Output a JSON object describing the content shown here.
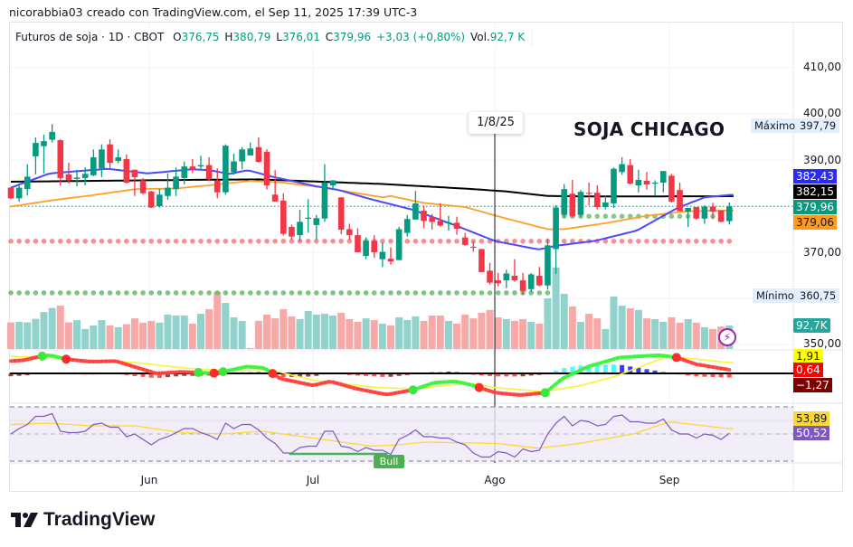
{
  "credit": "nicorabbia03 creado con TradingView.com, el Sep 11, 2025 17:39 UTC-3",
  "legend": {
    "symbol": "Futuros de soja · 1D · CBOT",
    "o_label": "O",
    "o": "376,75",
    "h_label": "H",
    "h": "380,79",
    "l_label": "L",
    "l": "376,01",
    "c_label": "C",
    "c": "379,96",
    "change": "+3,03 (+0,80%)",
    "vol_label": "Vol.",
    "vol": "92,7 K"
  },
  "annotation_title": "SOJA CHICAGO",
  "crosshair_date": "1/8/25",
  "bull_label": "Bull",
  "high_label": {
    "text": "Máximo",
    "value": "397,79"
  },
  "low_label": {
    "text": "Mínimo",
    "value": "360,75"
  },
  "price_ticks": [
    "410,00",
    "400,00",
    "390,00",
    "370,00",
    "350,00"
  ],
  "price_tags": [
    {
      "label": "382,43",
      "bg": "#2a2aff",
      "fg": "#ffffff"
    },
    {
      "label": "382,15",
      "bg": "#000000",
      "fg": "#ffffff"
    },
    {
      "label": "379,96",
      "bg": "#089981",
      "fg": "#ffffff"
    },
    {
      "label": "379,06",
      "bg": "#ff9a1f",
      "fg": "#131722"
    }
  ],
  "volume_tag": {
    "label": "92,7K",
    "bg": "#26a69a",
    "fg": "#ffffff"
  },
  "macd_tags": [
    {
      "label": "1,91",
      "bg": "#ffff00",
      "fg": "#131722"
    },
    {
      "label": "0,64",
      "bg": "#ff0000",
      "fg": "#ffffff"
    },
    {
      "label": "−1,27",
      "bg": "#7b0000",
      "fg": "#ffffff"
    }
  ],
  "rsi_tags": [
    {
      "label": "53,89",
      "bg": "#fdd835",
      "fg": "#131722"
    },
    {
      "label": "50,52",
      "bg": "#7e57c2",
      "fg": "#ffffff"
    }
  ],
  "months": [
    "Jun",
    "Jul",
    "Ago",
    "Sep"
  ],
  "logo_text": "TradingView",
  "colors": {
    "up": "#089981",
    "down": "#f23645",
    "vol_up": "#92d2cc",
    "vol_down": "#f7a9a7",
    "ma_fast": "#4a4aff",
    "ma_mid": "#ff9f2a",
    "ma_slow": "#000000"
  },
  "chart_data": {
    "type": "candlestick",
    "price_range": [
      348,
      414
    ],
    "candles_ohlc": [
      [
        384.0,
        384.2,
        381.5,
        381.7
      ],
      [
        381.7,
        384.8,
        381.0,
        384.0
      ],
      [
        383.7,
        389.1,
        382.3,
        386.4
      ],
      [
        390.8,
        394.9,
        386.9,
        393.7
      ],
      [
        393.0,
        395.5,
        387.1,
        394.1
      ],
      [
        394.4,
        397.79,
        393.8,
        396.1
      ],
      [
        394.3,
        394.5,
        384.5,
        386.1
      ],
      [
        386.9,
        389.4,
        384.9,
        385.7
      ],
      [
        385.9,
        387.9,
        384.3,
        386.2
      ],
      [
        386.1,
        388.4,
        384.5,
        387.0
      ],
      [
        386.7,
        392.3,
        386.5,
        390.6
      ],
      [
        388.2,
        393.4,
        386.3,
        392.3
      ],
      [
        393.4,
        394.5,
        388.0,
        389.4
      ],
      [
        389.8,
        392.3,
        389.3,
        390.6
      ],
      [
        390.2,
        391.2,
        384.9,
        385.1
      ],
      [
        387.9,
        387.9,
        382.2,
        386.3
      ],
      [
        385.6,
        386.1,
        382.5,
        382.8
      ],
      [
        383.2,
        383.3,
        379.6,
        379.7
      ],
      [
        380.0,
        383.7,
        379.7,
        382.5
      ],
      [
        382.2,
        387.1,
        381.4,
        384.0
      ],
      [
        383.7,
        388.4,
        382.2,
        386.4
      ],
      [
        386.1,
        389.7,
        384.7,
        388.6
      ],
      [
        388.6,
        390.2,
        387.2,
        387.9
      ],
      [
        388.6,
        390.9,
        387.8,
        388.9
      ],
      [
        388.9,
        390.6,
        385.5,
        385.8
      ],
      [
        385.5,
        388.2,
        381.7,
        383.0
      ],
      [
        383.0,
        393.4,
        382.5,
        393.1
      ],
      [
        387.4,
        391.4,
        386.8,
        389.7
      ],
      [
        389.7,
        392.8,
        388.0,
        392.3
      ],
      [
        391.0,
        393.8,
        391.0,
        392.5
      ],
      [
        392.8,
        394.9,
        389.4,
        389.6
      ],
      [
        391.8,
        392.3,
        383.6,
        384.5
      ],
      [
        382.5,
        387.8,
        381.0,
        381.0
      ],
      [
        381.2,
        382.8,
        373.6,
        374.0
      ],
      [
        375.5,
        376.0,
        372.7,
        373.4
      ],
      [
        373.7,
        379.2,
        372.4,
        376.6
      ],
      [
        377.4,
        381.5,
        374.3,
        377.5
      ],
      [
        375.9,
        378.1,
        372.7,
        377.4
      ],
      [
        377.3,
        389.1,
        376.6,
        385.1
      ],
      [
        384.5,
        385.6,
        383.7,
        385.6
      ],
      [
        381.9,
        381.9,
        373.9,
        374.9
      ],
      [
        375.0,
        376.2,
        372.7,
        373.7
      ],
      [
        373.7,
        375.2,
        370.0,
        370.0
      ],
      [
        369.2,
        373.2,
        368.5,
        372.5
      ],
      [
        372.5,
        373.7,
        368.8,
        370.0
      ],
      [
        368.5,
        372.1,
        366.8,
        370.1
      ],
      [
        368.6,
        371.1,
        367.3,
        368.0
      ],
      [
        368.3,
        375.5,
        368.3,
        375.0
      ],
      [
        374.2,
        378.1,
        373.4,
        377.2
      ],
      [
        377.1,
        383.3,
        377.1,
        380.6
      ],
      [
        379.0,
        380.1,
        375.2,
        376.8
      ],
      [
        377.6,
        378.3,
        374.9,
        376.6
      ],
      [
        376.8,
        380.6,
        375.5,
        375.8
      ],
      [
        376.4,
        377.9,
        374.7,
        376.5
      ],
      [
        376.4,
        377.7,
        373.8,
        375.1
      ],
      [
        373.2,
        374.2,
        371.4,
        371.6
      ],
      [
        371.2,
        372.4,
        370.1,
        371.1
      ],
      [
        370.7,
        370.7,
        365.7,
        365.7
      ],
      [
        366.0,
        367.7,
        363.0,
        363.4
      ],
      [
        363.9,
        365.5,
        362.6,
        363.3
      ],
      [
        363.9,
        366.2,
        362.2,
        365.4
      ],
      [
        364.9,
        368.5,
        363.6,
        363.9
      ],
      [
        363.9,
        365.5,
        360.75,
        361.6
      ],
      [
        362.0,
        365.5,
        361.4,
        365.2
      ],
      [
        364.9,
        366.8,
        362.6,
        362.8
      ],
      [
        362.8,
        373.0,
        361.9,
        371.5
      ],
      [
        370.7,
        380.2,
        365.3,
        379.7
      ],
      [
        378.1,
        384.8,
        377.6,
        383.7
      ],
      [
        382.7,
        385.7,
        377.6,
        377.8
      ],
      [
        378.1,
        383.5,
        377.6,
        383.1
      ],
      [
        382.9,
        385.1,
        380.2,
        382.7
      ],
      [
        382.9,
        384.5,
        379.3,
        379.8
      ],
      [
        379.8,
        382.2,
        379.3,
        380.8
      ],
      [
        380.6,
        388.4,
        379.6,
        388.1
      ],
      [
        387.4,
        390.6,
        386.8,
        389.1
      ],
      [
        388.9,
        390.2,
        384.7,
        384.9
      ],
      [
        384.5,
        387.9,
        383.0,
        385.7
      ],
      [
        385.5,
        387.4,
        383.6,
        384.7
      ],
      [
        385.0,
        385.6,
        382.2,
        385.1
      ],
      [
        385.1,
        387.6,
        383.0,
        387.6
      ],
      [
        386.6,
        387.0,
        380.8,
        381.0
      ],
      [
        383.5,
        385.1,
        378.9,
        378.9
      ],
      [
        378.8,
        379.6,
        375.5,
        379.6
      ],
      [
        379.8,
        379.8,
        377.0,
        377.3
      ],
      [
        377.3,
        380.2,
        376.2,
        379.9
      ],
      [
        379.9,
        380.7,
        377.2,
        378.8
      ],
      [
        379.1,
        379.1,
        376.5,
        376.6
      ],
      [
        376.75,
        380.79,
        376.01,
        379.96
      ]
    ],
    "volume_k": [
      105,
      107,
      105,
      119,
      146,
      162,
      171,
      105,
      114,
      79,
      93,
      114,
      93,
      86,
      98,
      121,
      104,
      111,
      104,
      136,
      132,
      132,
      100,
      139,
      157,
      226,
      182,
      125,
      111,
      4,
      111,
      136,
      121,
      157,
      129,
      118,
      150,
      136,
      139,
      132,
      143,
      118,
      107,
      121,
      114,
      100,
      93,
      125,
      114,
      129,
      111,
      132,
      132,
      111,
      100,
      136,
      121,
      143,
      154,
      125,
      118,
      111,
      118,
      107,
      100,
      200,
      322,
      218,
      168,
      107,
      139,
      121,
      79,
      207,
      171,
      161,
      154,
      121,
      118,
      107,
      125,
      104,
      118,
      104,
      86,
      79,
      89,
      92.7
    ],
    "ma_fast": [
      [
        0,
        384.0
      ],
      [
        4.7,
        387.1
      ],
      [
        11.7,
        388.1
      ],
      [
        16.6,
        387.1
      ],
      [
        22,
        388.0
      ],
      [
        24,
        387.8
      ],
      [
        26.5,
        387.0
      ],
      [
        28.7,
        387.8
      ],
      [
        31.6,
        386.4
      ],
      [
        37,
        384.3
      ],
      [
        39.7,
        383.5
      ],
      [
        43.6,
        381.5
      ],
      [
        48.7,
        379.2
      ],
      [
        54,
        375.7
      ],
      [
        58.7,
        372.4
      ],
      [
        63.9,
        370.6
      ],
      [
        66,
        371.4
      ],
      [
        70.8,
        372.5
      ],
      [
        75.8,
        374.7
      ],
      [
        80.7,
        379.6
      ],
      [
        84,
        381.9
      ],
      [
        87,
        382.43
      ]
    ],
    "ma_mid": [
      [
        0,
        379.9
      ],
      [
        4.7,
        381.2
      ],
      [
        9.6,
        382.3
      ],
      [
        15.1,
        383.7
      ],
      [
        20,
        383.8
      ],
      [
        22,
        384.2
      ],
      [
        24,
        384.5
      ],
      [
        29,
        385.5
      ],
      [
        33,
        385.1
      ],
      [
        38,
        384.0
      ],
      [
        45,
        381.9
      ],
      [
        46,
        382.2
      ],
      [
        50,
        380.7
      ],
      [
        55,
        379.8
      ],
      [
        60,
        377.3
      ],
      [
        65,
        375.0
      ],
      [
        67,
        375.0
      ],
      [
        72,
        376.3
      ],
      [
        77,
        377.9
      ],
      [
        82,
        378.9
      ],
      [
        87,
        379.06
      ]
    ],
    "ma_slow": [
      [
        0,
        385.3
      ],
      [
        22,
        385.7
      ],
      [
        30,
        385.8
      ],
      [
        45,
        384.8
      ],
      [
        55,
        383.8
      ],
      [
        60,
        383.2
      ],
      [
        65,
        382.2
      ],
      [
        70,
        382.1
      ],
      [
        87,
        382.15
      ]
    ],
    "resistance_dots": 372.4,
    "support_dots": {
      "value": 361.2,
      "from": 0,
      "to": 65
    },
    "support_dots_2": {
      "value": 377.8,
      "from": 67,
      "to": 87
    },
    "last_price": 379.96,
    "crosshair_bar": 58.6,
    "macd": {
      "range": [
        -4.5,
        4.0
      ],
      "line": [
        [
          0,
          2.17
        ],
        [
          1.6,
          2.33
        ],
        [
          3.6,
          3.0
        ],
        [
          4.7,
          3.2
        ],
        [
          6.7,
          2.5
        ],
        [
          9.6,
          2.06
        ],
        [
          12.7,
          2.17
        ],
        [
          14.7,
          1.27
        ],
        [
          17.6,
          0
        ],
        [
          20.6,
          0.26
        ],
        [
          24.6,
          0.05
        ],
        [
          25.7,
          0.3
        ],
        [
          28.6,
          1.2
        ],
        [
          30.7,
          0.95
        ],
        [
          32.6,
          -0.9
        ],
        [
          36.6,
          -2.1
        ],
        [
          38.7,
          -1.4
        ],
        [
          41.6,
          -2.6
        ],
        [
          44.7,
          -3.5
        ],
        [
          45.6,
          -3.7
        ],
        [
          48.7,
          -2.9
        ],
        [
          51.3,
          -1.6
        ],
        [
          53.8,
          -1.4
        ],
        [
          55.6,
          -1.96
        ],
        [
          58.7,
          -3.4
        ],
        [
          61.7,
          -3.8
        ],
        [
          64.7,
          -3.4
        ],
        [
          66.8,
          -0.9
        ],
        [
          69.9,
          1.2
        ],
        [
          73.7,
          2.8
        ],
        [
          78.6,
          3.2
        ],
        [
          80.6,
          2.8
        ],
        [
          83,
          1.6
        ],
        [
          87,
          0.64
        ]
      ],
      "signal": [
        [
          0,
          3.0
        ],
        [
          4.7,
          2.8
        ],
        [
          9.6,
          2.3
        ],
        [
          15.1,
          1.9
        ],
        [
          20.6,
          1.0
        ],
        [
          25.7,
          0.5
        ],
        [
          31.5,
          0.6
        ],
        [
          36.6,
          -1.2
        ],
        [
          42.5,
          -2.2
        ],
        [
          44.6,
          -2.5
        ],
        [
          48.7,
          -2.7
        ],
        [
          55.6,
          -1.7
        ],
        [
          58.7,
          -2.5
        ],
        [
          64.4,
          -3.2
        ],
        [
          68.8,
          -2.2
        ],
        [
          73.2,
          -0.5
        ],
        [
          77.5,
          1.9
        ],
        [
          79.7,
          3.0
        ],
        [
          87,
          1.91
        ]
      ],
      "crosses": [
        [
          3.8,
          "bull"
        ],
        [
          6.7,
          "bear"
        ],
        [
          22.7,
          "bull"
        ],
        [
          24.6,
          "bear"
        ],
        [
          25.7,
          "bull"
        ],
        [
          31.7,
          "bear"
        ],
        [
          48.7,
          "bull"
        ],
        [
          56.7,
          "bear"
        ],
        [
          64.7,
          "bull"
        ],
        [
          80.6,
          "bear"
        ]
      ]
    },
    "rsi": {
      "range": [
        30,
        70
      ],
      "values": [
        50,
        54,
        57,
        63,
        63,
        65,
        52,
        51,
        51,
        52,
        57,
        58,
        55,
        55,
        48,
        50,
        46,
        42,
        46,
        48,
        51,
        54,
        54,
        51,
        49,
        46,
        58,
        54,
        57,
        57,
        53,
        47,
        43,
        36,
        36,
        40,
        41,
        41,
        52,
        52,
        41,
        40,
        37,
        40,
        38,
        38,
        35,
        46,
        49,
        53,
        48,
        48,
        47,
        47,
        44,
        42,
        36,
        33,
        33,
        37,
        36,
        33,
        39,
        37,
        38,
        50,
        58,
        63,
        56,
        60,
        59,
        56,
        57,
        63,
        64,
        59,
        59,
        58,
        58,
        61,
        53,
        50,
        50,
        47,
        50,
        49,
        46,
        50.52
      ],
      "ma": [
        [
          0,
          57
        ],
        [
          4.7,
          58
        ],
        [
          9.6,
          56
        ],
        [
          15.1,
          56
        ],
        [
          20.6,
          51
        ],
        [
          25.7,
          50
        ],
        [
          30.5,
          52
        ],
        [
          36.6,
          47
        ],
        [
          43.6,
          41
        ],
        [
          46.9,
          42
        ],
        [
          50.2,
          44
        ],
        [
          58.9,
          43
        ],
        [
          63.9,
          39.5
        ],
        [
          68.8,
          43
        ],
        [
          75.4,
          50
        ],
        [
          79.7,
          59
        ],
        [
          87,
          53.89
        ]
      ],
      "bull_divergence": {
        "from": 33.7,
        "to": 45.6,
        "value": 35.3
      }
    }
  }
}
